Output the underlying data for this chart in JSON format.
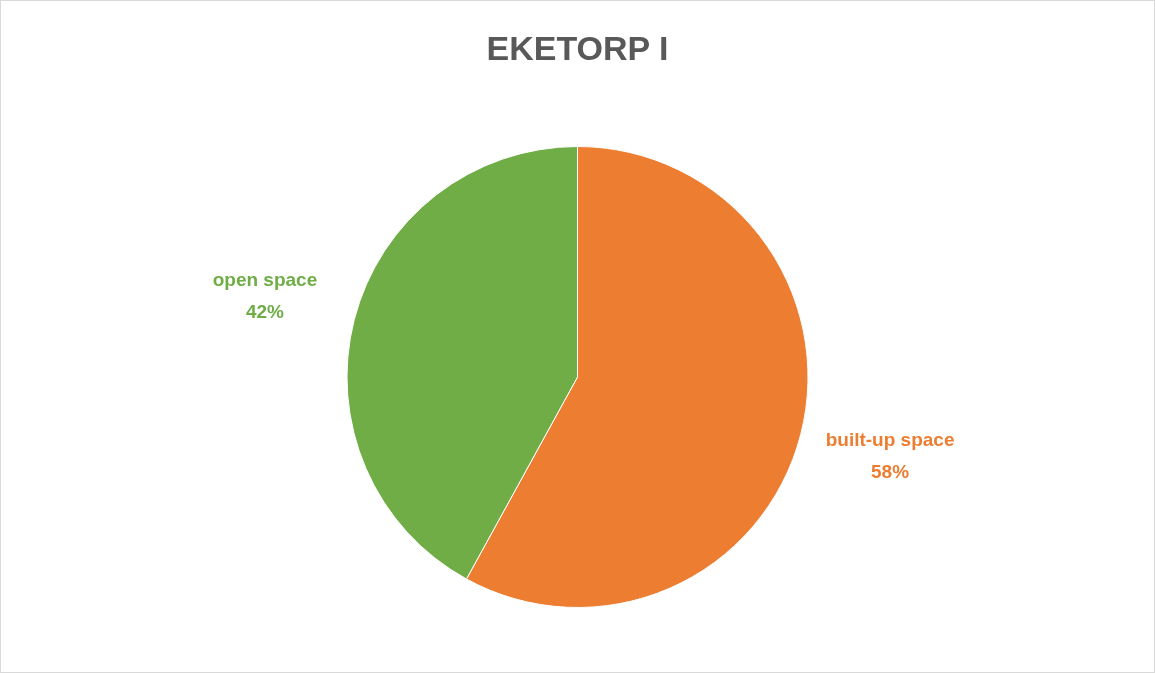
{
  "chart_data": {
    "type": "pie",
    "title": "EKETORP I",
    "categories": [
      "built-up space",
      "open space"
    ],
    "values": [
      58,
      42
    ],
    "colors": [
      "#ed7d31",
      "#70ad47"
    ],
    "value_labels": [
      "58%",
      "42%"
    ],
    "legend": false
  }
}
